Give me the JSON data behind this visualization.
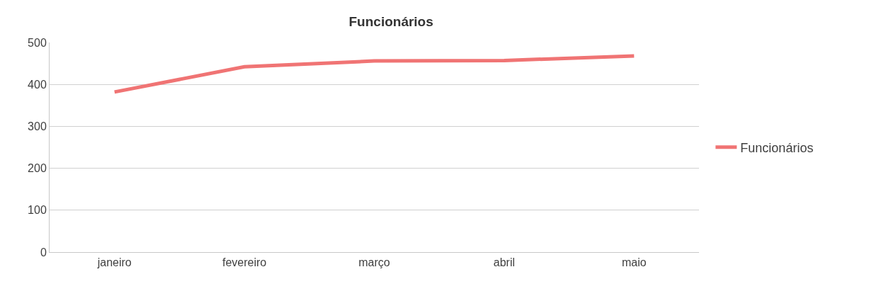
{
  "chart_data": {
    "type": "line",
    "title": "Funcionários",
    "categories": [
      "janeiro",
      "fevereiro",
      "março",
      "abril",
      "maio"
    ],
    "series": [
      {
        "name": "Funcionários",
        "color": "#f07474",
        "values": [
          382,
          442,
          456,
          457,
          468
        ]
      }
    ],
    "ylim": [
      0,
      500
    ],
    "yticks": [
      0,
      100,
      200,
      300,
      400,
      500
    ],
    "grid": "y",
    "legend": "right",
    "marker": "none",
    "line_style": "solid"
  }
}
